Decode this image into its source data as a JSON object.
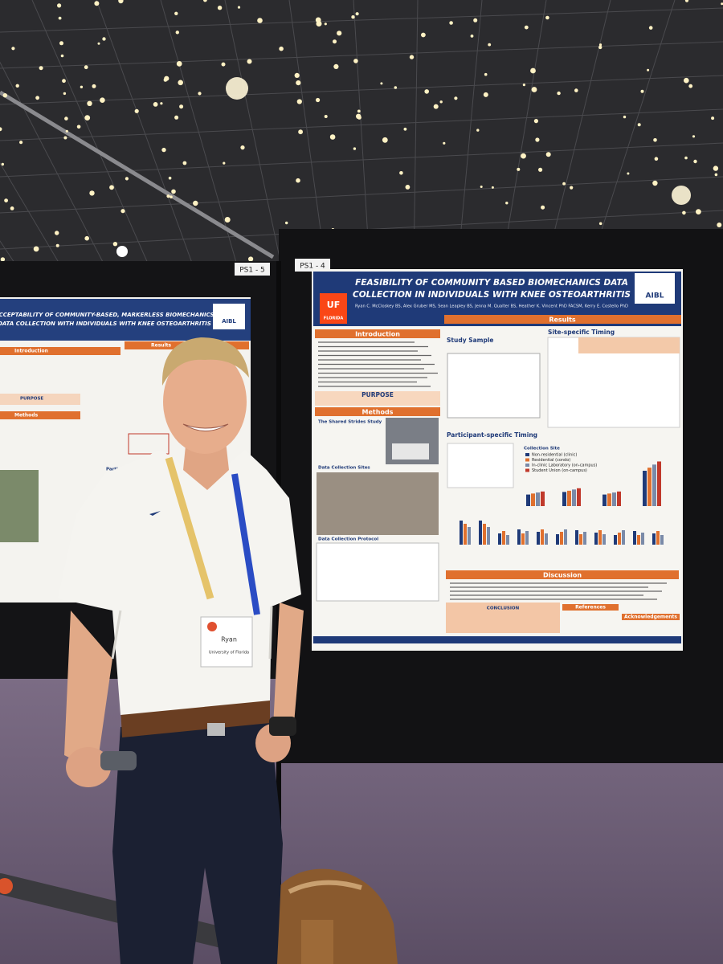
{
  "boards": [
    {
      "label": "PS1 - 5"
    },
    {
      "label": "PS1 - 4"
    }
  ],
  "posters": [
    {
      "title_lines": [
        "ACCEPTABILITY OF COMMUNITY-BASED, MARKERLESS BIOMECHANICS",
        "DATA COLLECTION WITH INDIVIDUALS WITH KNEE OSTEOARTHRITIS"
      ],
      "logo": "AIBL",
      "sections": [
        "Introduction",
        "Results",
        "PURPOSE",
        "Methods",
        "Participation Preferences"
      ]
    },
    {
      "title_lines": [
        "FEASIBILITY OF COMMUNITY BASED BIOMECHANICS DATA",
        "COLLECTION IN INDIVIDUALS WITH KNEE OSTEOARTHRITIS"
      ],
      "authors": "Ryan C. McCloskey BS, Alex Gruber MS, Sean Leapley BS, Jenna M. Qualter BS, Heather K. Vincent PhD FACSM, Kerry E. Costello PhD",
      "logos": [
        "UF",
        "FLORIDA",
        "AIBL"
      ],
      "sections": [
        "Introduction",
        "Results",
        "Study Sample",
        "Site-specific Timing",
        "PURPOSE",
        "Methods",
        "The Shared Strides Study",
        "Data Collection Sites",
        "Participant-specific Timing",
        "Collection Site",
        "Data Collection Protocol",
        "Discussion",
        "CONCLUSION",
        "References",
        "Acknowledgements"
      ],
      "legend": [
        "Non-residential (clinic)",
        "Residential (condo)",
        "In-clinic Laboratory (on-campus)",
        "Student Union (on-campus)"
      ]
    }
  ],
  "badge": {
    "name": "Ryan",
    "affiliation": "University of Florida"
  }
}
